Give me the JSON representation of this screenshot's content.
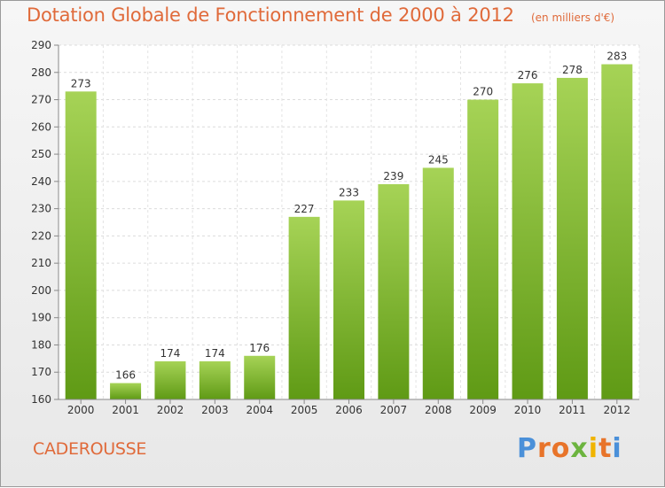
{
  "chart_data": {
    "type": "bar",
    "title": "Dotation Globale de Fonctionnement de 2000 à 2012",
    "unit_note": "(en milliers d'€)",
    "categories": [
      "2000",
      "2001",
      "2002",
      "2003",
      "2004",
      "2005",
      "2006",
      "2007",
      "2008",
      "2009",
      "2010",
      "2011",
      "2012"
    ],
    "values": [
      273,
      166,
      174,
      174,
      176,
      227,
      233,
      239,
      245,
      270,
      276,
      278,
      283
    ],
    "ylim": [
      160,
      290
    ],
    "yticks": [
      160,
      170,
      180,
      190,
      200,
      210,
      220,
      230,
      240,
      250,
      260,
      270,
      280,
      290
    ],
    "grid": true,
    "bar_colors": {
      "top": "#a6d356",
      "bottom": "#5f9a15"
    },
    "text_color": "#e06a3a"
  },
  "commune": "CADEROUSSE",
  "logo": {
    "letters": [
      "P",
      "r",
      "o",
      "x",
      "i",
      "t",
      "i"
    ],
    "colors": [
      "#4a90d9",
      "#e8742a",
      "#e8742a",
      "#6cb43f",
      "#f0b400",
      "#e8742a",
      "#4a90d9"
    ]
  }
}
